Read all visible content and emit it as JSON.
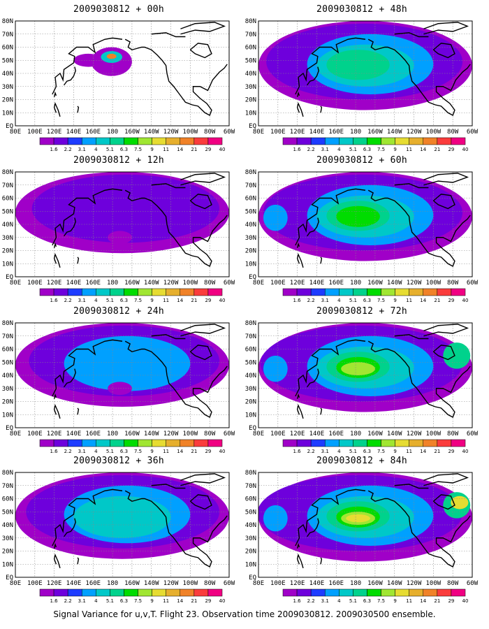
{
  "figure": {
    "caption": "Signal Variance for u,v,T. Flight 23. Observation time 2009030812. 2009030500 ensemble."
  },
  "axes": {
    "x_ticks": [
      "80E",
      "100E",
      "120E",
      "140E",
      "160E",
      "180",
      "160W",
      "140W",
      "120W",
      "100W",
      "80W",
      "60W"
    ],
    "y_ticks": [
      "EQ",
      "10N",
      "20N",
      "30N",
      "40N",
      "50N",
      "60N",
      "70N",
      "80N"
    ]
  },
  "colorbar": {
    "labels": [
      "1.6",
      "2.2",
      "3.1",
      "4",
      "5.1",
      "6.3",
      "7.5",
      "9",
      "11",
      "14",
      "21",
      "29",
      "40"
    ],
    "colors": [
      "#a000c8",
      "#6e00dc",
      "#1e3cff",
      "#00a0ff",
      "#00c8c8",
      "#00d28c",
      "#00dc00",
      "#a0e632",
      "#e6dc32",
      "#e6af2d",
      "#f08228",
      "#fa3c3c",
      "#f00082"
    ]
  },
  "chart_data": [
    {
      "type": "heatmap",
      "title": "2009030812 + 00h",
      "level": 0
    },
    {
      "type": "heatmap",
      "title": "2009030812 + 48h",
      "level": 4
    },
    {
      "type": "heatmap",
      "title": "2009030812 + 12h",
      "level": 1
    },
    {
      "type": "heatmap",
      "title": "2009030812 + 60h",
      "level": 5
    },
    {
      "type": "heatmap",
      "title": "2009030812 + 24h",
      "level": 2
    },
    {
      "type": "heatmap",
      "title": "2009030812 + 72h",
      "level": 6
    },
    {
      "type": "heatmap",
      "title": "2009030812 + 36h",
      "level": 3
    },
    {
      "type": "heatmap",
      "title": "2009030812 + 84h",
      "level": 7
    }
  ]
}
